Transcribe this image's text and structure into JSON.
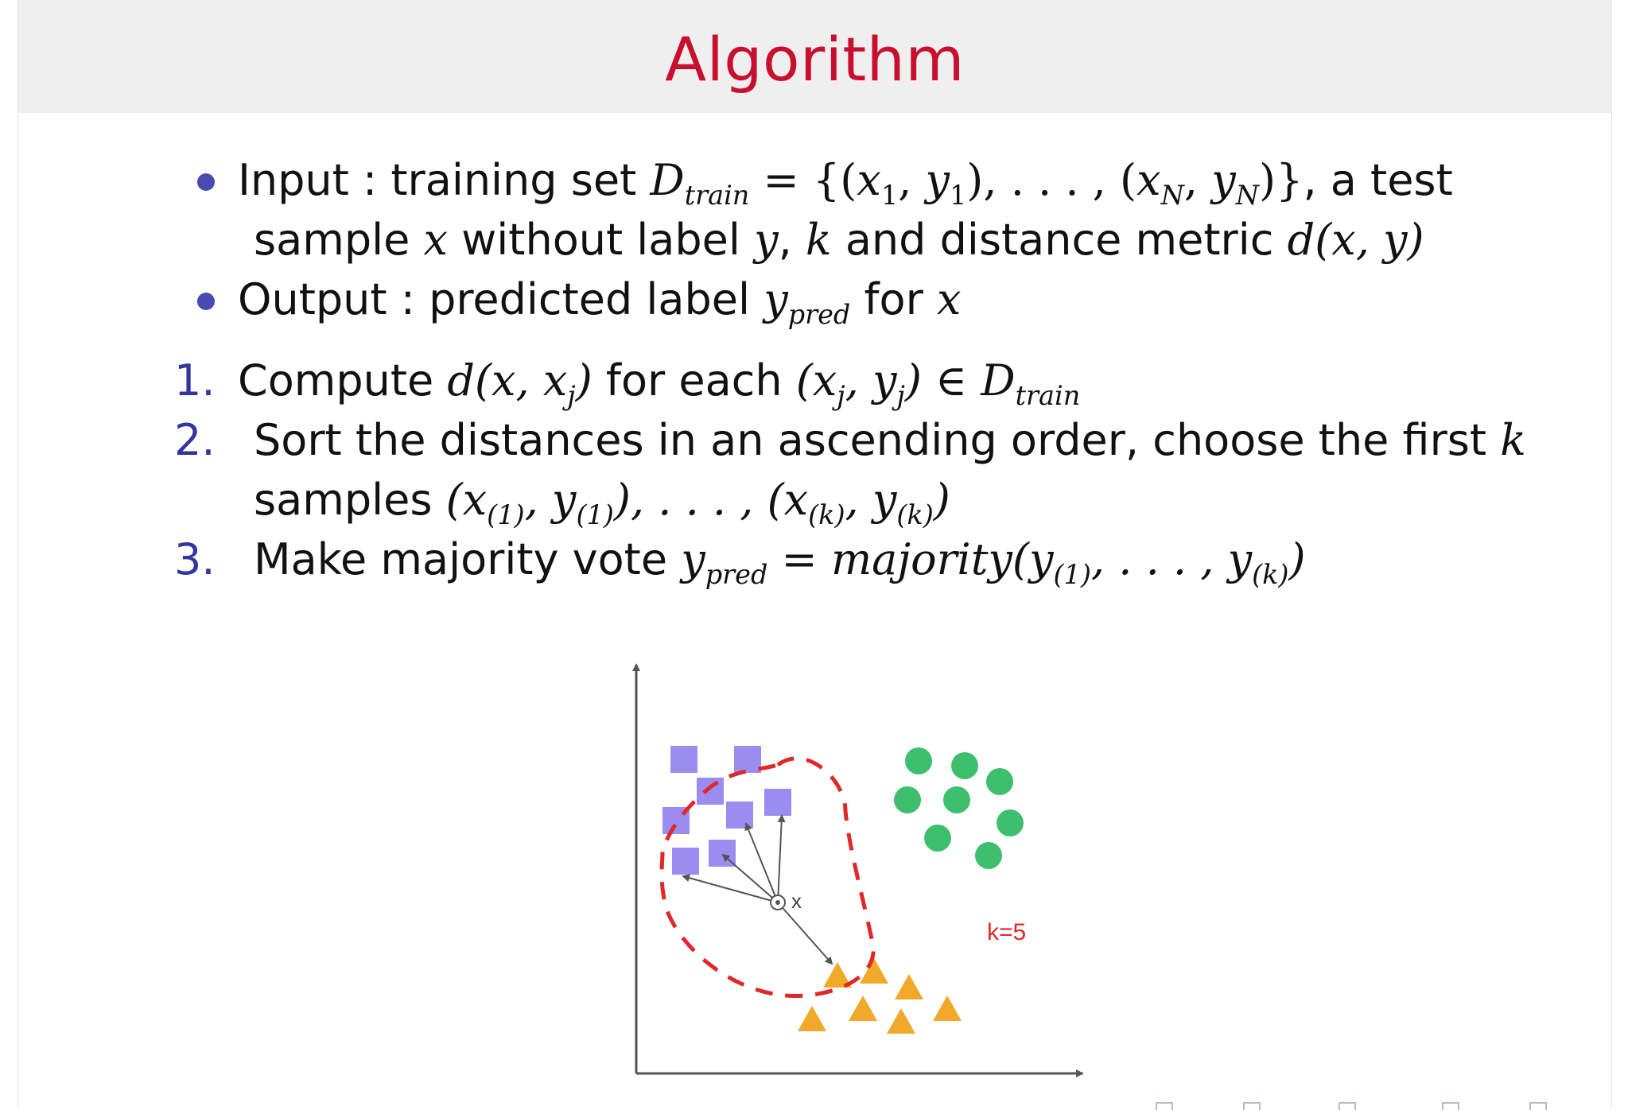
{
  "slide": {
    "title": "Algorithm"
  },
  "bullets": [
    {
      "label": "Input : training set ",
      "d_symbol": "D",
      "d_sub": "train",
      "eq": " = {(",
      "x1": "x",
      "x1sub": "1",
      "sep1": ", ",
      "y1": "y",
      "y1sub": "1",
      "mid": "), . . . , (",
      "xn": "x",
      "xnsub": "N",
      "sep2": ", ",
      "yn": "y",
      "ynsub": "N",
      "close": ")}",
      "tail": ", a test",
      "line2_a": "sample ",
      "line2_x": "x",
      "line2_b": " without label ",
      "line2_y": "y",
      "line2_c": ", ",
      "line2_k": "k",
      "line2_d": " and distance metric ",
      "line2_fn": "d",
      "line2_args": "(x, y)"
    },
    {
      "label": "Output : predicted label ",
      "y": "y",
      "ysub": "pred",
      "tail": " for ",
      "x": "x"
    }
  ],
  "steps": [
    {
      "num": "1.",
      "a": "Compute ",
      "expr1": "d(x, x",
      "expr1sub": "j",
      "expr1close": ")",
      "b": " for each ",
      "expr2": "(x",
      "expr2sub1": "j",
      "expr2mid": ", y",
      "expr2sub2": "j",
      "expr2close": ")",
      "in": " ∈ ",
      "d": "D",
      "dsub": "train"
    },
    {
      "num": "2.",
      "line1": "Sort the distances in an ascending order, choose the first ",
      "k": "k",
      "line2": "samples ",
      "expr": "(x",
      "s1": "(1)",
      "e2": ", y",
      "s2": "(1)",
      "e3": "), . . . , (x",
      "s3": "(k)",
      "e4": ", y",
      "s4": "(k)",
      "e5": ")"
    },
    {
      "num": "3.",
      "a": "Make majority vote ",
      "y": "y",
      "ysub": "pred",
      "eq": " = ",
      "fn": "majority",
      "o": "(y",
      "s1": "(1)",
      "mid": ", . . . , y",
      "s2": "(k)",
      "c": ")"
    }
  ],
  "figure": {
    "query_label": "x",
    "k_label": "k=5",
    "colors": {
      "square": "#9b8cf0",
      "circle": "#3dbf6e",
      "triangle": "#f0a92a",
      "boundary": "#e0282a",
      "axis": "#555555"
    }
  }
}
